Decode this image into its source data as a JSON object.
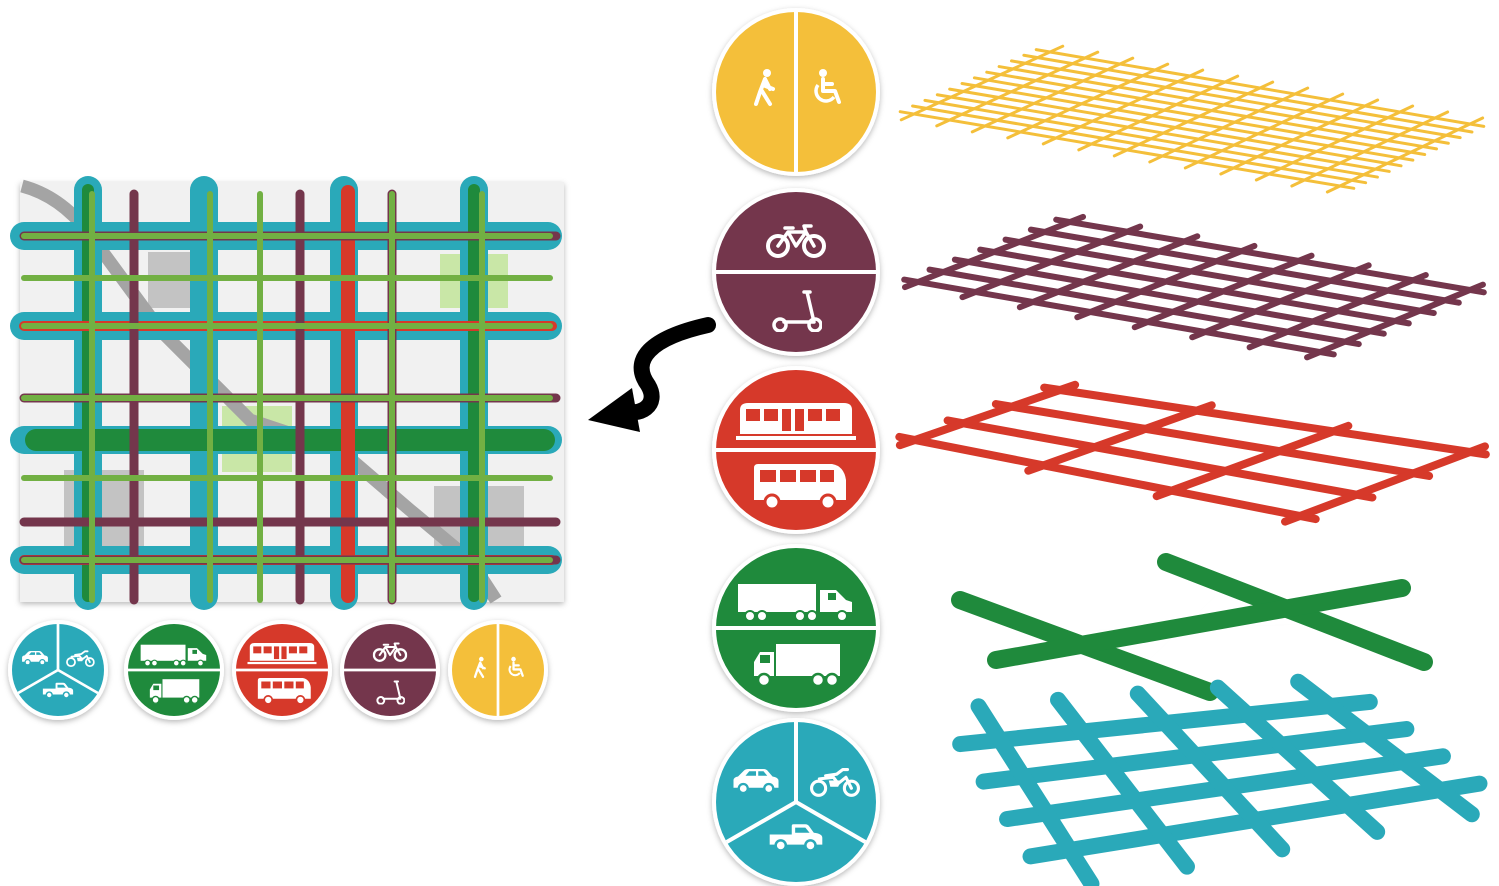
{
  "colors": {
    "pedestrian": "#f4bf3a",
    "micromobility": "#74364c",
    "transit": "#d6392a",
    "freight": "#1f8a3c",
    "light_green": "#72b043",
    "general_traffic": "#2aa9b9",
    "map_background": "#f1f1f1",
    "map_block": "#c3c3c3",
    "map_park": "#c9e7a7",
    "icon_white": "#ffffff",
    "arrow": "#000000"
  },
  "layers": [
    {
      "id": "pedestrian",
      "icons": [
        "pedestrian-walking-icon",
        "wheelchair-icon"
      ],
      "color_key": "pedestrian",
      "network_density": "dense-fine"
    },
    {
      "id": "micromobility",
      "icons": [
        "bicycle-icon",
        "kick-scooter-icon"
      ],
      "color_key": "micromobility",
      "network_density": "medium"
    },
    {
      "id": "transit",
      "icons": [
        "tram-icon",
        "bus-icon"
      ],
      "color_key": "transit",
      "network_density": "sparse"
    },
    {
      "id": "freight",
      "icons": [
        "semi-truck-icon",
        "box-truck-icon"
      ],
      "color_key": "freight",
      "network_density": "very-sparse-thick"
    },
    {
      "id": "general-traffic",
      "icons": [
        "car-icon",
        "motorcycle-icon",
        "pickup-truck-icon"
      ],
      "color_key": "general_traffic",
      "network_density": "medium-thick"
    }
  ],
  "combined_map": {
    "legend_order": [
      "general-traffic",
      "freight",
      "transit",
      "micromobility",
      "pedestrian"
    ]
  },
  "arrow": {
    "direction": "left",
    "meaning": "layers-combine-into-map"
  }
}
